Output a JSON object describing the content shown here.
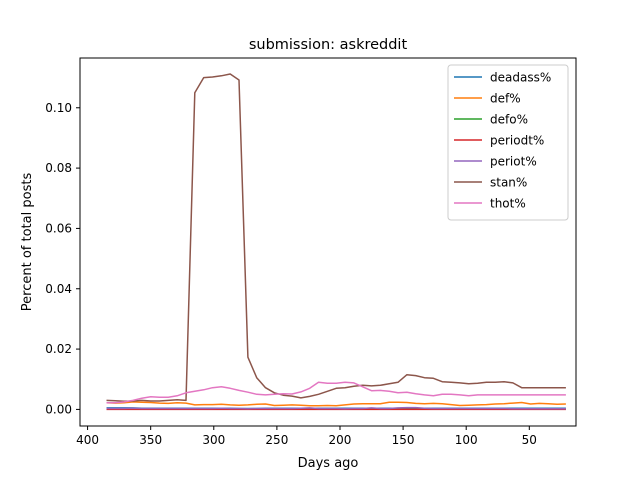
{
  "chart_data": {
    "type": "line",
    "title": "submission: askreddit",
    "xlabel": "Days ago",
    "ylabel": "Percent of total posts",
    "xlim": [
      406,
      13
    ],
    "ylim": [
      -0.0055,
      0.1165
    ],
    "x_reversed": true,
    "x_ticks": [
      400,
      350,
      300,
      250,
      200,
      150,
      100,
      50
    ],
    "y_ticks": [
      0.0,
      0.02,
      0.04,
      0.06,
      0.08,
      0.1
    ],
    "y_tick_labels": [
      "0.00",
      "0.02",
      "0.04",
      "0.06",
      "0.08",
      "0.10"
    ],
    "grid": false,
    "legend_position": "upper right",
    "x": [
      385,
      378,
      371,
      364,
      357,
      350,
      343,
      336,
      329,
      322,
      315,
      308,
      301,
      294,
      287,
      280,
      273,
      266,
      259,
      252,
      245,
      238,
      231,
      224,
      217,
      210,
      203,
      196,
      189,
      182,
      175,
      168,
      161,
      154,
      147,
      140,
      133,
      126,
      119,
      112,
      105,
      98,
      91,
      84,
      77,
      70,
      63,
      56,
      49,
      42,
      35,
      28,
      21
    ],
    "series": [
      {
        "name": "deadass%",
        "color": "#1f77b4",
        "values": [
          0.0005,
          0.0005,
          0.0005,
          0.0005,
          0.0004,
          0.0004,
          0.0004,
          0.0004,
          0.0004,
          0.0004,
          0.0004,
          0.0004,
          0.0004,
          0.0004,
          0.0004,
          0.0003,
          0.0003,
          0.0003,
          0.0004,
          0.0004,
          0.0004,
          0.0004,
          0.0004,
          0.0004,
          0.0004,
          0.0004,
          0.0004,
          0.0004,
          0.0004,
          0.0004,
          0.0004,
          0.0004,
          0.0004,
          0.0004,
          0.0004,
          0.0004,
          0.0004,
          0.0004,
          0.0004,
          0.0004,
          0.0004,
          0.0004,
          0.0004,
          0.0004,
          0.0004,
          0.0004,
          0.0004,
          0.0004,
          0.0004,
          0.0004,
          0.0004,
          0.0004,
          0.0004
        ]
      },
      {
        "name": "def%",
        "color": "#ff7f0e",
        "values": [
          0.0022,
          0.0021,
          0.0022,
          0.0025,
          0.0024,
          0.0023,
          0.0021,
          0.002,
          0.0022,
          0.0021,
          0.0015,
          0.0016,
          0.0016,
          0.0017,
          0.0015,
          0.0014,
          0.0015,
          0.0017,
          0.0018,
          0.0013,
          0.0014,
          0.0015,
          0.0014,
          0.0012,
          0.0012,
          0.0013,
          0.0012,
          0.0015,
          0.0018,
          0.0019,
          0.0019,
          0.0019,
          0.0024,
          0.0024,
          0.0023,
          0.002,
          0.0019,
          0.002,
          0.0019,
          0.0016,
          0.0013,
          0.0014,
          0.0015,
          0.0016,
          0.0018,
          0.0019,
          0.0021,
          0.0023,
          0.0018,
          0.002,
          0.0019,
          0.0017,
          0.0018
        ]
      },
      {
        "name": "defo%",
        "color": "#2ca02c",
        "values": [
          0.0001,
          0.0001,
          0.0001,
          0.0001,
          0.0001,
          0.0001,
          0.0001,
          0.0001,
          0.0001,
          0.0001,
          0.0001,
          0.0001,
          0.0001,
          0.0001,
          0.0001,
          0.0001,
          0.0001,
          0.0001,
          0.0001,
          0.0001,
          0.0001,
          0.0001,
          0.0001,
          0.0001,
          0.0001,
          0.0001,
          0.0001,
          0.0001,
          0.0001,
          0.0001,
          0.0001,
          0.0001,
          0.0001,
          0.0001,
          0.0001,
          0.0001,
          0.0001,
          0.0001,
          0.0001,
          0.0001,
          0.0001,
          0.0001,
          0.0001,
          0.0001,
          0.0001,
          0.0001,
          0.0001,
          0.0001,
          0.0001,
          0.0001,
          0.0001,
          0.0001,
          0.0001
        ]
      },
      {
        "name": "periodt%",
        "color": "#d62728",
        "values": [
          0.0,
          0.0,
          0.0,
          0.0,
          0.0,
          0.0,
          0.0,
          0.0,
          0.0,
          0.0,
          0.0,
          0.0,
          0.0,
          0.0,
          0.0,
          0.0,
          0.0,
          0.0,
          0.0,
          0.0,
          0.0,
          0.0,
          0.0,
          0.0,
          0.0,
          0.0,
          0.0,
          0.0,
          0.0,
          0.0,
          0.0,
          0.0,
          0.0,
          0.0,
          0.0,
          0.0,
          0.0,
          0.0,
          0.0,
          0.0,
          0.0,
          0.0,
          0.0,
          0.0,
          0.0,
          0.0,
          0.0,
          0.0,
          0.0,
          0.0,
          0.0,
          0.0,
          0.0
        ]
      },
      {
        "name": "periot%",
        "color": "#9467bd",
        "values": [
          0.0003,
          0.0003,
          0.0003,
          0.0004,
          0.0003,
          0.0003,
          0.0003,
          0.0003,
          0.0003,
          0.0003,
          0.0003,
          0.0003,
          0.0003,
          0.0004,
          0.0003,
          0.0003,
          0.0002,
          0.0003,
          0.0003,
          0.0003,
          0.0003,
          0.0003,
          0.0004,
          0.0005,
          0.0003,
          0.0003,
          0.0003,
          0.0002,
          0.0003,
          0.0003,
          0.0005,
          0.0003,
          0.0003,
          0.0005,
          0.0006,
          0.0006,
          0.0004,
          0.0003,
          0.0003,
          0.0003,
          0.0003,
          0.0003,
          0.0003,
          0.0003,
          0.0003,
          0.0003,
          0.0002,
          0.0002,
          0.0002,
          0.0002,
          0.0002,
          0.0002,
          0.0002
        ]
      },
      {
        "name": "stan%",
        "color": "#8c564b",
        "values": [
          0.003,
          0.0029,
          0.0027,
          0.0028,
          0.003,
          0.0028,
          0.0028,
          0.003,
          0.0032,
          0.003,
          0.105,
          0.11,
          0.1102,
          0.1106,
          0.1112,
          0.1092,
          0.0173,
          0.0105,
          0.0072,
          0.0055,
          0.0047,
          0.0044,
          0.0038,
          0.0043,
          0.005,
          0.006,
          0.007,
          0.0072,
          0.0077,
          0.008,
          0.0078,
          0.008,
          0.0085,
          0.009,
          0.0115,
          0.0112,
          0.0105,
          0.0103,
          0.0092,
          0.009,
          0.0088,
          0.0085,
          0.0087,
          0.009,
          0.009,
          0.0092,
          0.0088,
          0.0072,
          0.0072,
          0.0072,
          0.0072,
          0.0072,
          0.0072
        ]
      },
      {
        "name": "thot%",
        "color": "#e377c2",
        "values": [
          0.0022,
          0.0022,
          0.0025,
          0.003,
          0.0037,
          0.0042,
          0.004,
          0.004,
          0.0045,
          0.0055,
          0.006,
          0.0065,
          0.0072,
          0.0075,
          0.007,
          0.0063,
          0.0057,
          0.005,
          0.0048,
          0.005,
          0.0052,
          0.0051,
          0.0058,
          0.007,
          0.009,
          0.0087,
          0.0087,
          0.009,
          0.0088,
          0.0075,
          0.0062,
          0.0063,
          0.006,
          0.0055,
          0.0057,
          0.0052,
          0.0048,
          0.0045,
          0.005,
          0.005,
          0.0048,
          0.0045,
          0.0048,
          0.0048,
          0.0048,
          0.0048,
          0.0048,
          0.0048,
          0.0048,
          0.0048,
          0.0048,
          0.0048,
          0.0048
        ]
      }
    ]
  }
}
